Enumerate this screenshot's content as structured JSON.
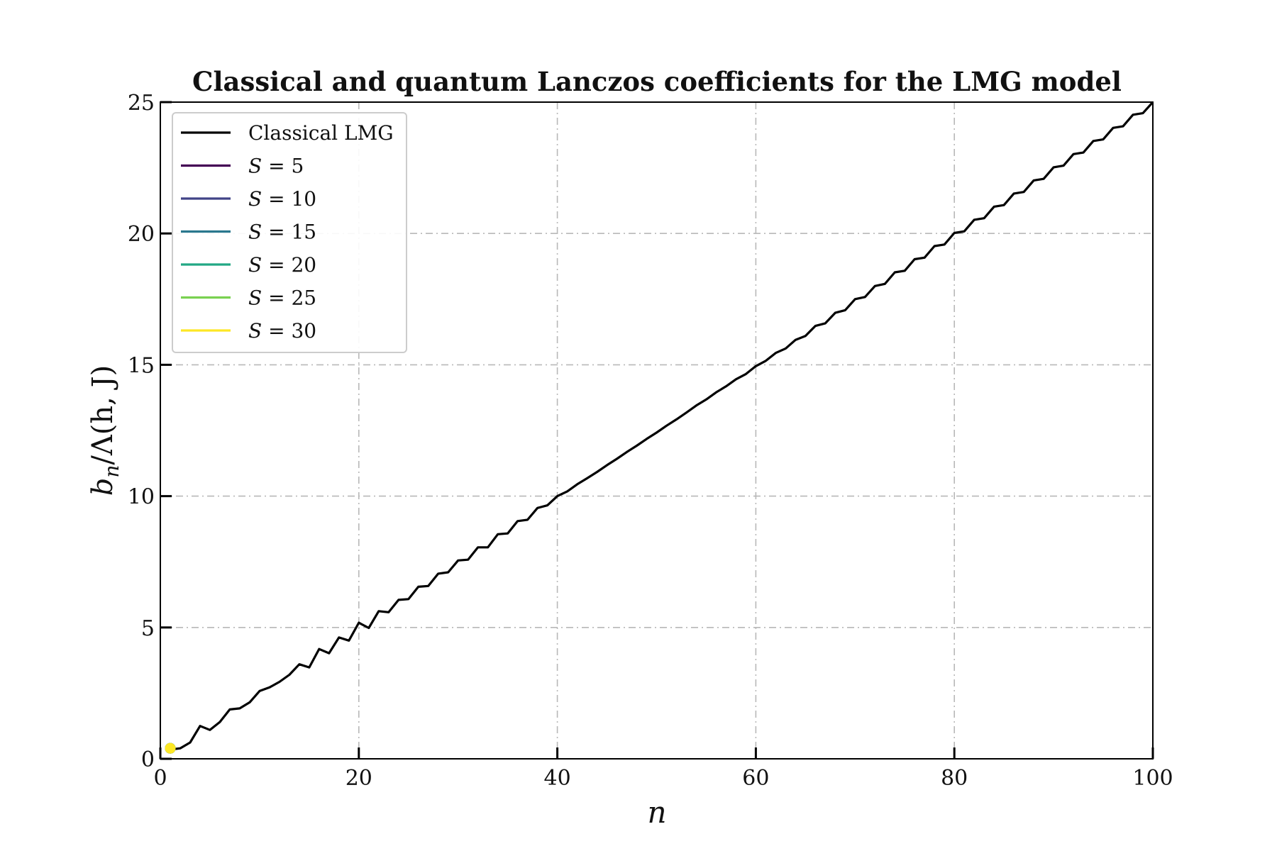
{
  "chart_data": {
    "type": "line",
    "title": "Classical and quantum Lanczos coefficients for the LMG model",
    "xlabel": "n",
    "ylabel": "b_n/Λ(h, J)",
    "xlim": [
      0,
      100
    ],
    "ylim": [
      0,
      25
    ],
    "xticks": [
      0,
      20,
      40,
      60,
      80,
      100
    ],
    "yticks": [
      0,
      5,
      10,
      15,
      20,
      25
    ],
    "xtick_labels": [
      "0",
      "20",
      "40",
      "60",
      "80",
      "100"
    ],
    "ytick_labels": [
      "0",
      "5",
      "10",
      "15",
      "20",
      "25"
    ],
    "grid": true,
    "legend_position": "top-left",
    "series": [
      {
        "name": "Classical LMG",
        "legend_label": "Classical LMG",
        "color": "#000000",
        "x": [
          1,
          2,
          3,
          4,
          5,
          6,
          7,
          8,
          9,
          10,
          11,
          12,
          13,
          14,
          15,
          16,
          17,
          18,
          19,
          20,
          21,
          22,
          23,
          24,
          25,
          26,
          27,
          28,
          29,
          30,
          31,
          32,
          33,
          34,
          35,
          36,
          37,
          38,
          39,
          40,
          41,
          42,
          43,
          44,
          45,
          46,
          47,
          48,
          49,
          50,
          51,
          52,
          53,
          54,
          55,
          56,
          57,
          58,
          59,
          60,
          61,
          62,
          63,
          64,
          65,
          66,
          67,
          68,
          69,
          70,
          71,
          72,
          73,
          74,
          75,
          76,
          77,
          78,
          79,
          80,
          81,
          82,
          83,
          84,
          85,
          86,
          87,
          88,
          89,
          90,
          91,
          92,
          93,
          94,
          95,
          96,
          97,
          98,
          99,
          100
        ],
        "y": [
          0.35,
          0.4,
          0.62,
          1.25,
          1.1,
          1.4,
          1.88,
          1.92,
          2.15,
          2.58,
          2.72,
          2.93,
          3.2,
          3.6,
          3.48,
          4.18,
          4.02,
          4.62,
          4.5,
          5.18,
          4.98,
          5.62,
          5.58,
          6.05,
          6.08,
          6.55,
          6.58,
          7.05,
          7.1,
          7.55,
          7.58,
          8.05,
          8.05,
          8.55,
          8.58,
          9.05,
          9.1,
          9.55,
          9.65,
          10.0,
          10.18,
          10.45,
          10.68,
          10.92,
          11.18,
          11.42,
          11.68,
          11.92,
          12.18,
          12.42,
          12.68,
          12.92,
          13.18,
          13.45,
          13.68,
          13.95,
          14.18,
          14.45,
          14.65,
          14.95,
          15.15,
          15.45,
          15.62,
          15.95,
          16.1,
          16.48,
          16.58,
          16.98,
          17.08,
          17.5,
          17.58,
          18.0,
          18.08,
          18.52,
          18.58,
          19.02,
          19.08,
          19.52,
          19.58,
          20.02,
          20.08,
          20.52,
          20.58,
          21.02,
          21.08,
          21.52,
          21.58,
          22.02,
          22.08,
          22.52,
          22.58,
          23.02,
          23.08,
          23.52,
          23.58,
          24.02,
          24.08,
          24.52,
          24.58,
          25.0
        ]
      },
      {
        "name": "S = 5",
        "legend_var": "S",
        "legend_value": "= 5",
        "color": "#440154",
        "x": [
          1
        ],
        "y": [
          0.4
        ]
      },
      {
        "name": "S = 10",
        "legend_var": "S",
        "legend_value": "= 10",
        "color": "#414487",
        "x": [
          1
        ],
        "y": [
          0.4
        ]
      },
      {
        "name": "S = 15",
        "legend_var": "S",
        "legend_value": "= 15",
        "color": "#2a788e",
        "x": [
          1
        ],
        "y": [
          0.4
        ]
      },
      {
        "name": "S = 20",
        "legend_var": "S",
        "legend_value": "= 20",
        "color": "#22a884",
        "x": [
          1
        ],
        "y": [
          0.4
        ]
      },
      {
        "name": "S = 25",
        "legend_var": "S",
        "legend_value": "= 25",
        "color": "#7ad151",
        "x": [
          1
        ],
        "y": [
          0.4
        ]
      },
      {
        "name": "S = 30",
        "legend_var": "S",
        "legend_value": "= 30",
        "color": "#fde725",
        "x": [
          1
        ],
        "y": [
          0.4
        ]
      }
    ]
  }
}
